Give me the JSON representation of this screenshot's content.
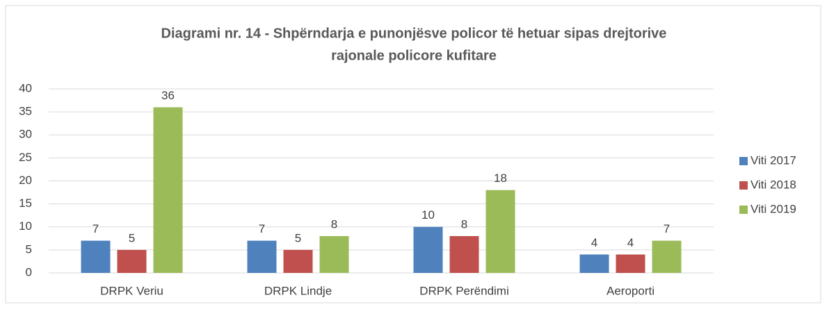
{
  "chart_data": {
    "type": "bar",
    "title": [
      "Diagrami nr. 14 - Shpërndarja e punonjësve policor të hetuar sipas drejtorive",
      "rajonale policore kufitare"
    ],
    "categories": [
      "DRPK Veriu",
      "DRPK Lindje",
      "DRPK Perëndimi",
      "Aeroporti"
    ],
    "series": [
      {
        "name": "Viti 2017",
        "color": "#4f81bd",
        "values": [
          7,
          7,
          10,
          4
        ]
      },
      {
        "name": "Viti 2018",
        "color": "#c0504d",
        "values": [
          5,
          5,
          8,
          4
        ]
      },
      {
        "name": "Viti 2019",
        "color": "#9bbb59",
        "values": [
          36,
          8,
          18,
          7
        ]
      }
    ],
    "ylim": [
      0,
      40
    ],
    "yticks": [
      0,
      5,
      10,
      15,
      20,
      25,
      30,
      35,
      40
    ],
    "grid": true,
    "legend": "right"
  }
}
